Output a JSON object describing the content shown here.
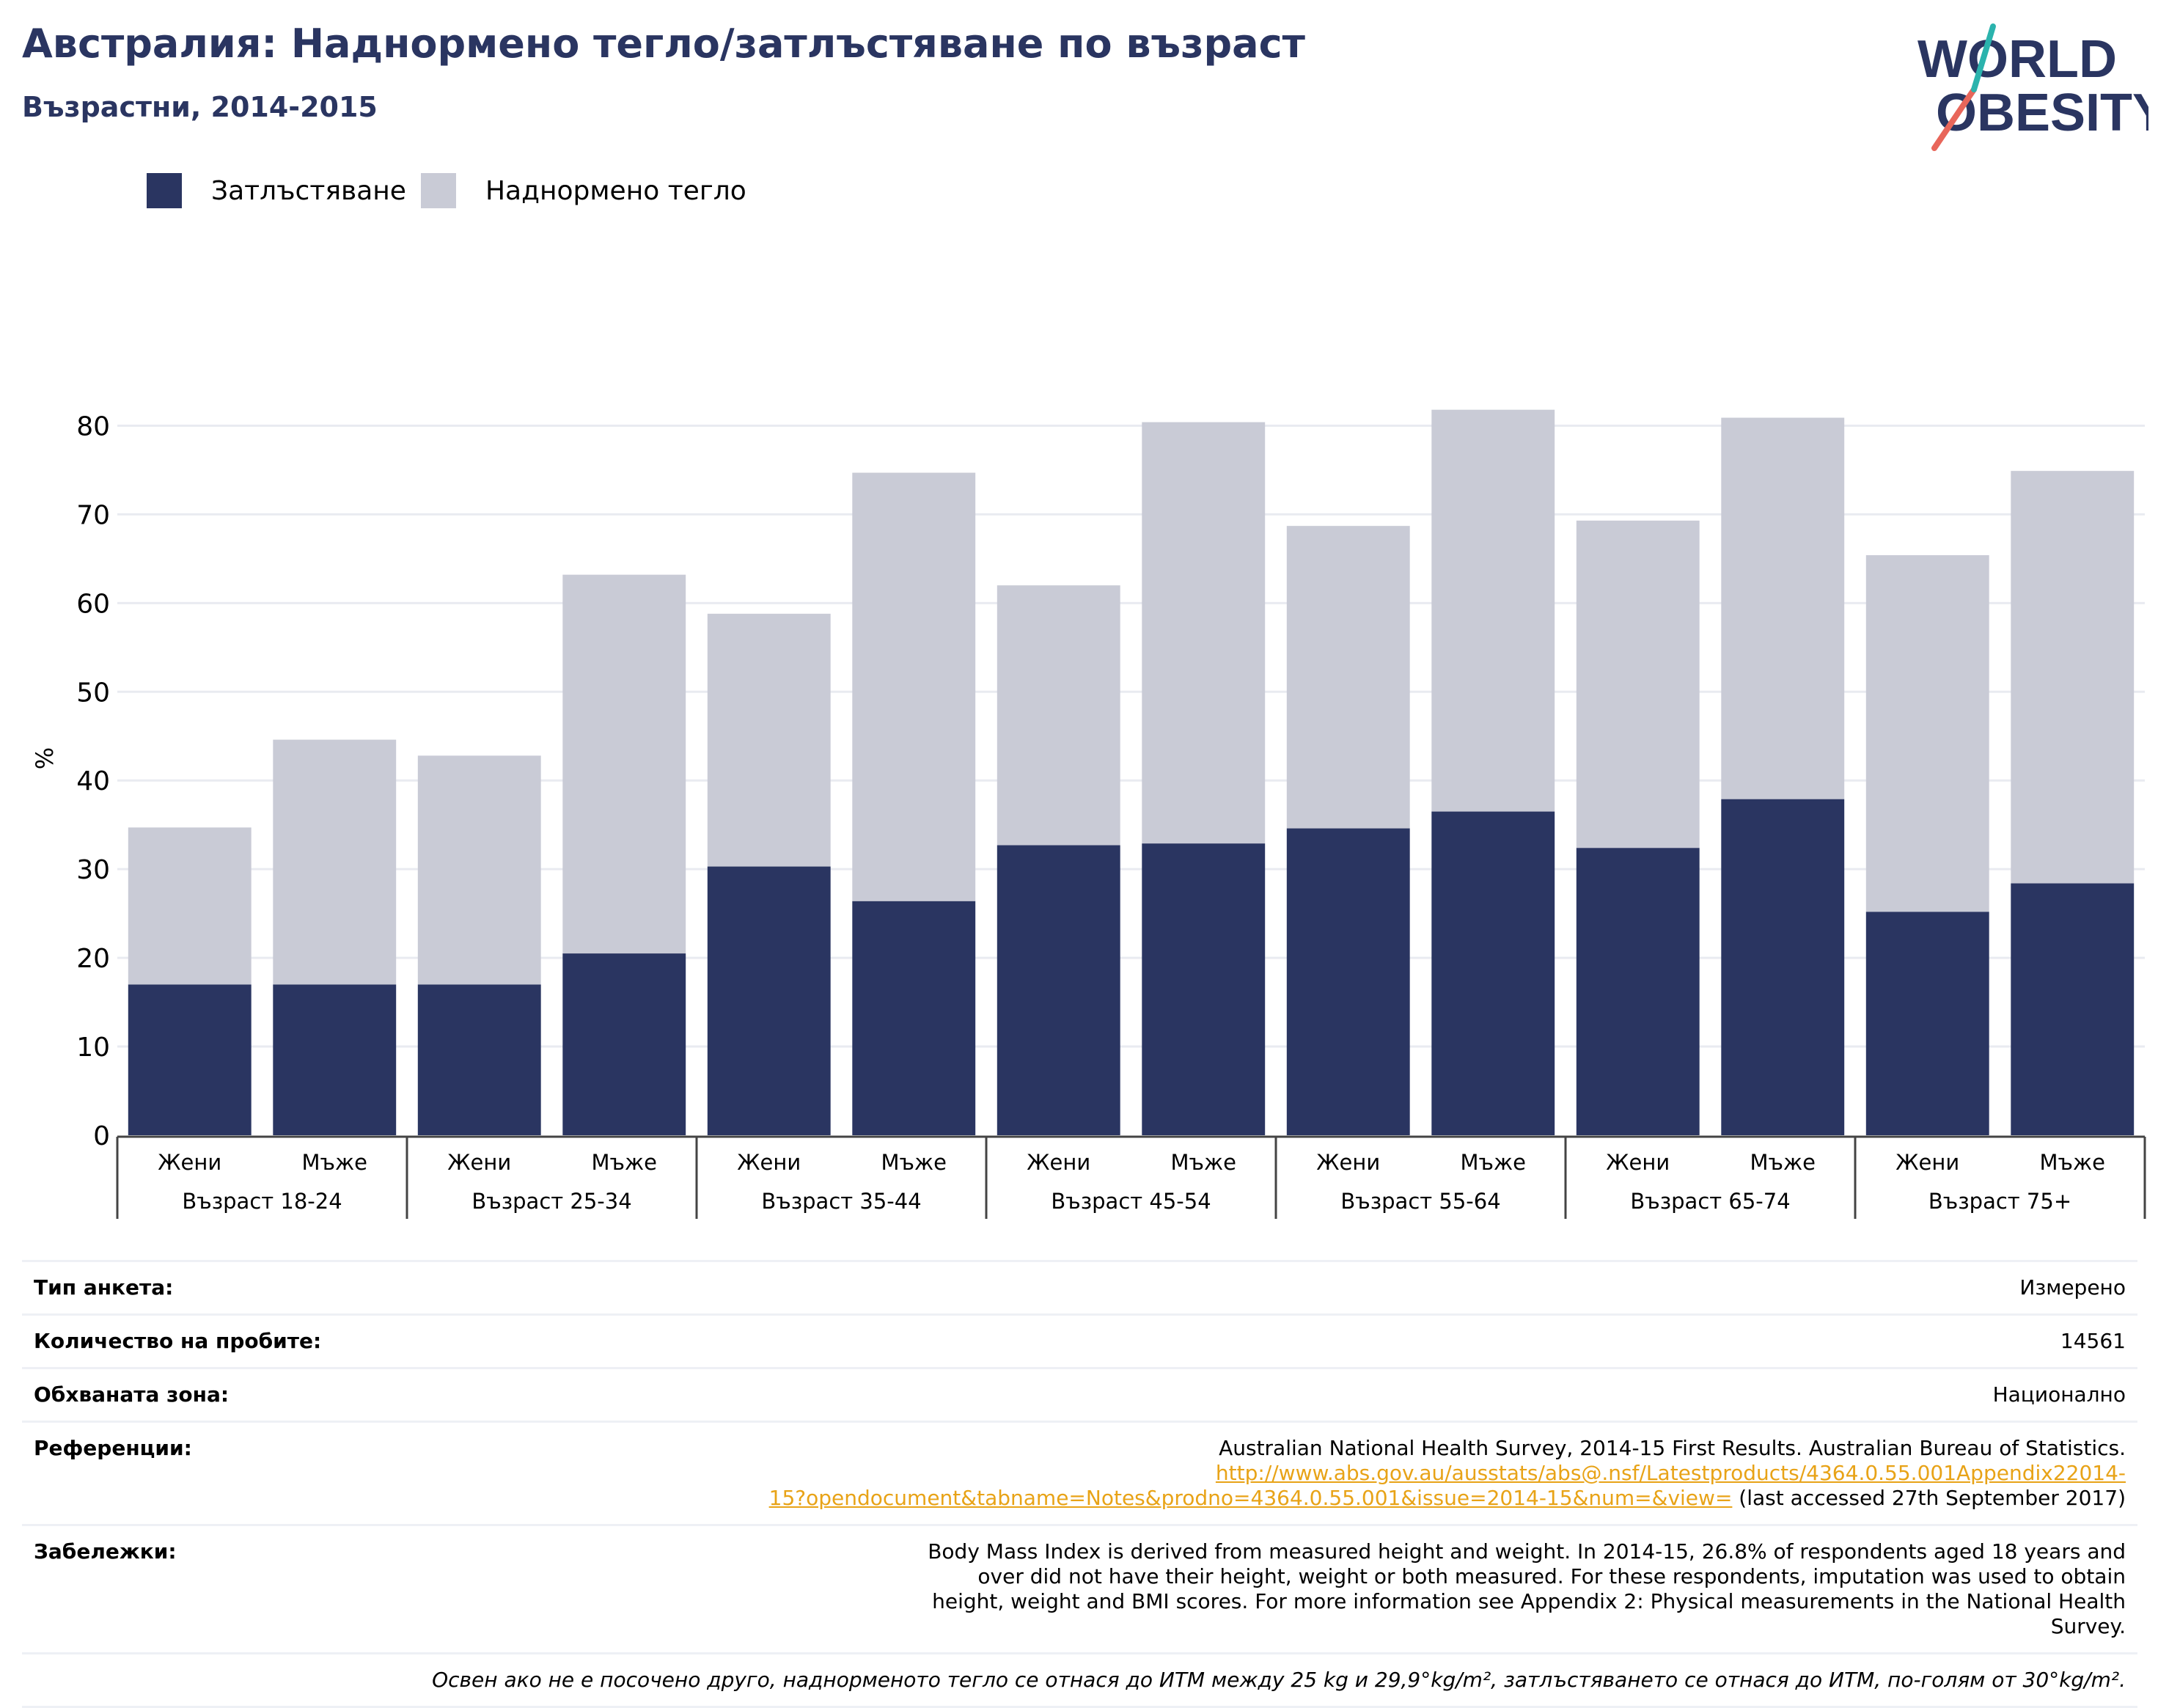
{
  "header": {
    "title": "Австралия: Наднормено тегло/затлъстяване по възраст",
    "subtitle": "Възрастни, 2014-2015"
  },
  "logo": {
    "line1": "WORLD",
    "line2": "OBESITY"
  },
  "colors": {
    "obesity": "#2a3561",
    "overweight": "#c9cbd6",
    "title": "#2a3561",
    "link": "#e8a317"
  },
  "legend": [
    {
      "label": "Затлъстяване",
      "color": "#2a3561"
    },
    {
      "label": "Наднормено тегло",
      "color": "#c9cbd6"
    }
  ],
  "chart_data": {
    "type": "bar",
    "stacked": true,
    "ylabel": "%",
    "ylim": [
      0,
      85
    ],
    "yticks": [
      0,
      10,
      20,
      30,
      40,
      50,
      60,
      70,
      80
    ],
    "grid": true,
    "legend_position": "top-left",
    "groups": [
      "Възраст 18-24",
      "Възраст 25-34",
      "Възраст 35-44",
      "Възраст 45-54",
      "Възраст 55-64",
      "Възраст 65-74",
      "Възраст 75+"
    ],
    "categories": [
      "Жени",
      "Мъже",
      "Жени",
      "Мъже",
      "Жени",
      "Мъже",
      "Жени",
      "Мъже",
      "Жени",
      "Мъже",
      "Жени",
      "Мъже",
      "Жени",
      "Мъже"
    ],
    "series": [
      {
        "name": "Затлъстяване",
        "values": [
          17.0,
          17.0,
          17.0,
          20.5,
          30.3,
          26.4,
          32.7,
          32.9,
          34.6,
          36.5,
          32.4,
          37.9,
          25.2,
          28.4
        ]
      },
      {
        "name": "Наднормено тегло",
        "values": [
          17.7,
          27.6,
          25.8,
          42.7,
          28.5,
          48.3,
          29.3,
          47.5,
          34.1,
          45.3,
          36.9,
          43.0,
          40.2,
          46.5
        ]
      }
    ]
  },
  "info": [
    {
      "label": "Тип анкета:",
      "value": "Измерено"
    },
    {
      "label": "Количество на пробите:",
      "value": "14561"
    },
    {
      "label": "Обхваната зона:",
      "value": "Национално"
    }
  ],
  "references": {
    "label": "Референции:",
    "text": "Australian National Health Survey, 2014-15 First Results. Australian Bureau of Statistics.",
    "link_part1": "http://www.abs.gov.au/ausstats/abs@.nsf/Latestproducts/4364.0.55.001Appendix22014-",
    "link_part2": "15?opendocument&tabname=Notes&prodno=4364.0.55.001&issue=2014-15&num=&view=",
    "suffix": " (last accessed 27th September 2017)"
  },
  "notes": {
    "label": "Забележки:",
    "text": "Body Mass Index is derived from measured height and weight. In 2014-15, 26.8% of respondents aged 18 years and over did not have their height, weight or both measured. For these respondents, imputation was used to obtain height, weight and BMI scores. For more information see Appendix 2: Physical measurements in the National Health Survey."
  },
  "footnote": "Освен ако не е посочено друго, наднорменото тегло се отнася до ИТМ между 25 kg и 29,9°kg/m², затлъстяването се отнася до ИТМ, по-голям от 30°kg/m²."
}
